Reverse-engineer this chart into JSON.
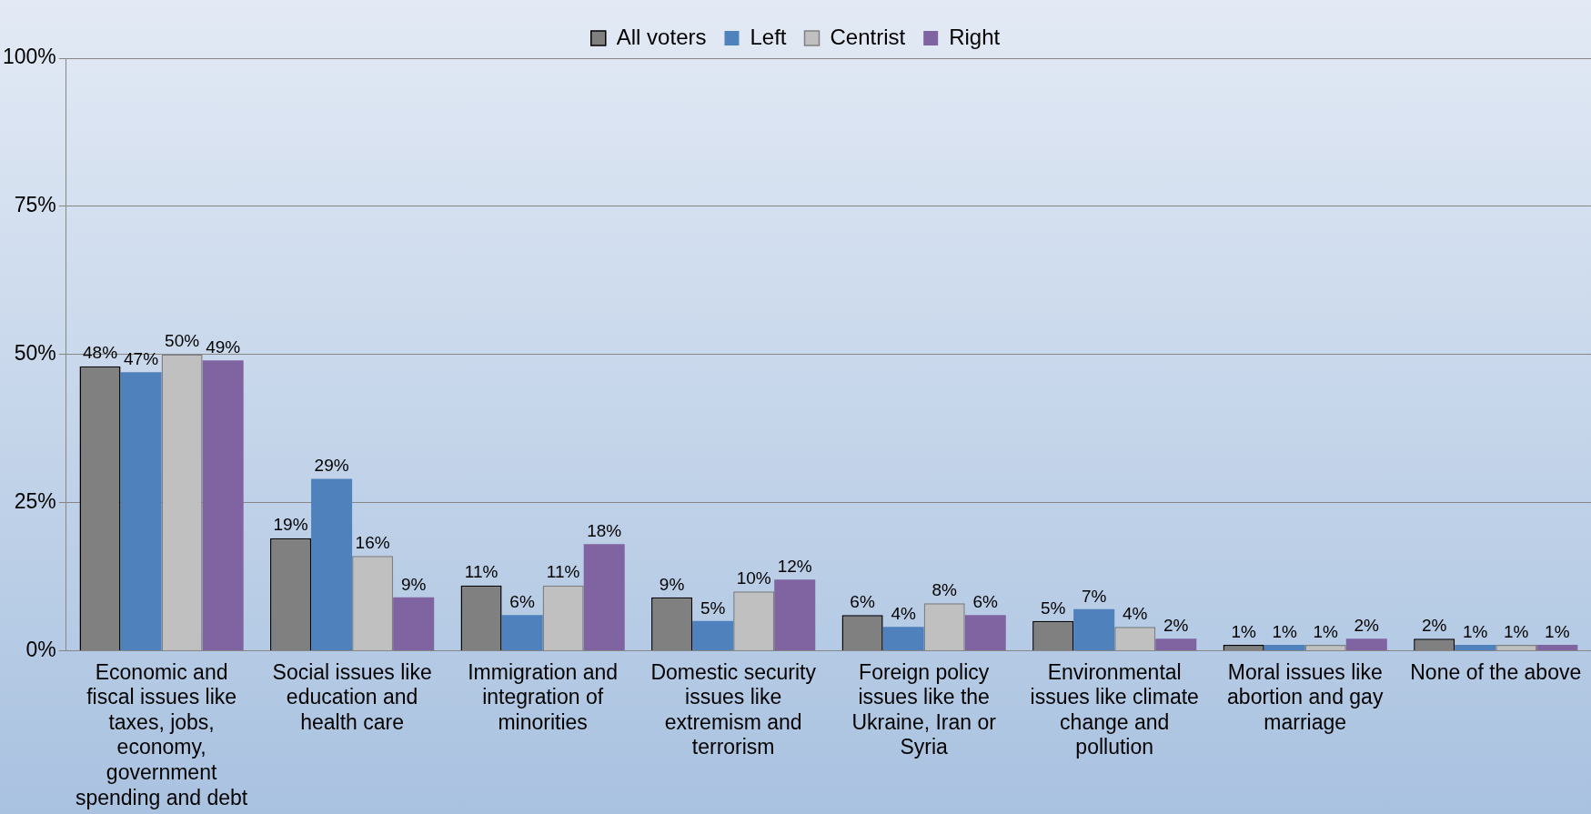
{
  "chart_data": {
    "type": "bar",
    "categories": [
      "Economic and fiscal issues like taxes, jobs, economy, government spending and debt",
      "Social issues like education and health care",
      "Immigration and integration of minorities",
      "Domestic security issues like extremism and terrorism",
      "Foreign policy issues like the Ukraine, Iran or Syria",
      "Environmental issues like climate change and pollution",
      "Moral issues like abortion and gay marriage",
      "None of the above"
    ],
    "series": [
      {
        "name": "All voters",
        "color": "#808080",
        "values": [
          48,
          19,
          11,
          9,
          6,
          5,
          1,
          2
        ],
        "value_labels": [
          "48%",
          "19%",
          "11%",
          "9%",
          "6%",
          "5%",
          "1%",
          "2%"
        ]
      },
      {
        "name": "Left",
        "color": "#4f81bd",
        "values": [
          47,
          29,
          6,
          5,
          4,
          7,
          1,
          1
        ],
        "value_labels": [
          "47%",
          "29%",
          "6%",
          "5%",
          "4%",
          "7%",
          "1%",
          "1%"
        ]
      },
      {
        "name": "Centrist",
        "color": "#c0c0c0",
        "values": [
          50,
          16,
          11,
          10,
          8,
          4,
          1,
          1
        ],
        "value_labels": [
          "50%",
          "16%",
          "11%",
          "10%",
          "8%",
          "4%",
          "1%",
          "1%"
        ]
      },
      {
        "name": "Right",
        "color": "#8064a2",
        "values": [
          49,
          9,
          18,
          12,
          6,
          2,
          2,
          1
        ],
        "value_labels": [
          "49%",
          "9%",
          "18%",
          "12%",
          "6%",
          "2%",
          "2%",
          "1%"
        ]
      }
    ],
    "ylim": [
      0,
      100
    ],
    "yticks": [
      {
        "value": 0,
        "label": "0%"
      },
      {
        "value": 25,
        "label": "25%"
      },
      {
        "value": 50,
        "label": "50%"
      },
      {
        "value": 75,
        "label": "75%"
      },
      {
        "value": 100,
        "label": "100%"
      }
    ],
    "grid": "y",
    "legend": "top"
  }
}
